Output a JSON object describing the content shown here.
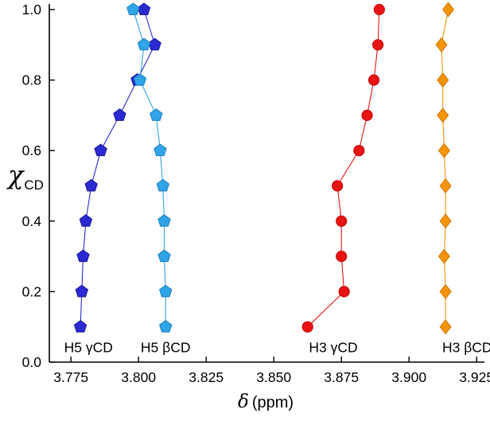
{
  "figure": {
    "background": "#ffffff",
    "axis_color": "#000000",
    "xlabel": {
      "greek": "δ",
      "rest": "(ppm)"
    },
    "ylabel": {
      "greek": "χ",
      "sub": "CD"
    }
  },
  "chart_data": {
    "type": "scatter",
    "title": "",
    "xlabel": "δ (ppm)",
    "ylabel": "χ_CD",
    "xlim": [
      3.767,
      3.927
    ],
    "ylim": [
      0.0,
      1.0
    ],
    "grid": false,
    "legend": "none",
    "x_ticks": [
      3.775,
      3.8,
      3.825,
      3.85,
      3.875,
      3.9,
      3.925
    ],
    "x_tick_labels": [
      "3.775",
      "3.800",
      "3.825",
      "3.850",
      "3.875",
      "3.900",
      "3.925"
    ],
    "y_ticks": [
      0.0,
      0.2,
      0.4,
      0.6,
      0.8,
      1.0
    ],
    "y_tick_labels": [
      "0.0",
      "0.2",
      "0.4",
      "0.6",
      "0.8",
      "1.0"
    ],
    "chi": [
      0.1,
      0.2,
      0.3,
      0.4,
      0.5,
      0.6,
      0.7,
      0.8,
      0.9,
      1.0
    ],
    "series": [
      {
        "name": "H5 γCD",
        "marker": "pentagon",
        "color": "#2a2ad0",
        "edge": "#15159c",
        "delta": [
          3.7785,
          3.779,
          3.7795,
          3.7805,
          3.7825,
          3.786,
          3.793,
          3.7995,
          3.806,
          3.802
        ]
      },
      {
        "name": "H5 βCD",
        "marker": "pentagon",
        "color": "#2fa4e6",
        "edge": "#1b7cc0",
        "delta": [
          3.81,
          3.81,
          3.8095,
          3.8095,
          3.809,
          3.808,
          3.8065,
          3.8005,
          3.802,
          3.798
        ]
      },
      {
        "name": "H3 γCD",
        "marker": "circle",
        "color": "#e81414",
        "edge": "#bf0606",
        "delta": [
          3.8625,
          3.876,
          3.875,
          3.875,
          3.8735,
          3.8815,
          3.8845,
          3.887,
          3.8885,
          3.889
        ]
      },
      {
        "name": "H3 βCD",
        "marker": "diamond",
        "color": "#f59408",
        "edge": "#cf7502",
        "delta": [
          3.9135,
          3.9135,
          3.913,
          3.9135,
          3.9135,
          3.913,
          3.9125,
          3.9125,
          3.912,
          3.9145
        ]
      }
    ],
    "annotations": [
      {
        "text": "H5 γCD",
        "x": 3.7815,
        "y": 0.042
      },
      {
        "text": "H5 βCD",
        "x": 3.81,
        "y": 0.042
      },
      {
        "text": "H3 γCD",
        "x": 3.872,
        "y": 0.042
      },
      {
        "text": "H3 βCD",
        "x": 3.9215,
        "y": 0.042
      }
    ]
  }
}
